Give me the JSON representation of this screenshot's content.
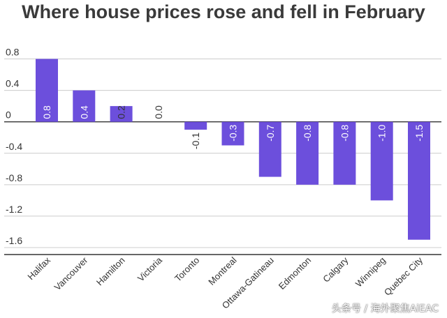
{
  "chart_data": {
    "type": "bar",
    "title": "Where house prices rose and fell in February",
    "categories": [
      "Halifax",
      "Vancouver",
      "Hamilton",
      "Victoria",
      "Toronto",
      "Montreal",
      "Ottawa-Gatineau",
      "Edmonton",
      "Calgary",
      "Winnipeg",
      "Quebec City"
    ],
    "values": [
      0.8,
      0.4,
      0.2,
      0.0,
      -0.1,
      -0.3,
      -0.7,
      -0.8,
      -0.8,
      -1.0,
      -1.5
    ],
    "data_labels": [
      "0.8",
      "0.4",
      "0.2",
      "0.0",
      "-0.1",
      "-0.3",
      "-0.7",
      "-0.8",
      "-0.8",
      "-1.0",
      "-1.5"
    ],
    "yticks": [
      0.8,
      0.4,
      0,
      -0.4,
      -0.8,
      -1.2,
      -1.6
    ],
    "ytick_labels": [
      "0.8",
      "0.4",
      "0",
      "-0.4",
      "-0.8",
      "-1.2",
      "-1.6"
    ],
    "ylim": [
      -1.6,
      0.8
    ],
    "xlabel": "",
    "ylabel": "",
    "grid": true,
    "bar_color": "#6c4fdc",
    "grid_color": "#cccccc",
    "label_color": "#ffffff"
  },
  "watermark": "头条号 / 海外聚焦AiEAC"
}
